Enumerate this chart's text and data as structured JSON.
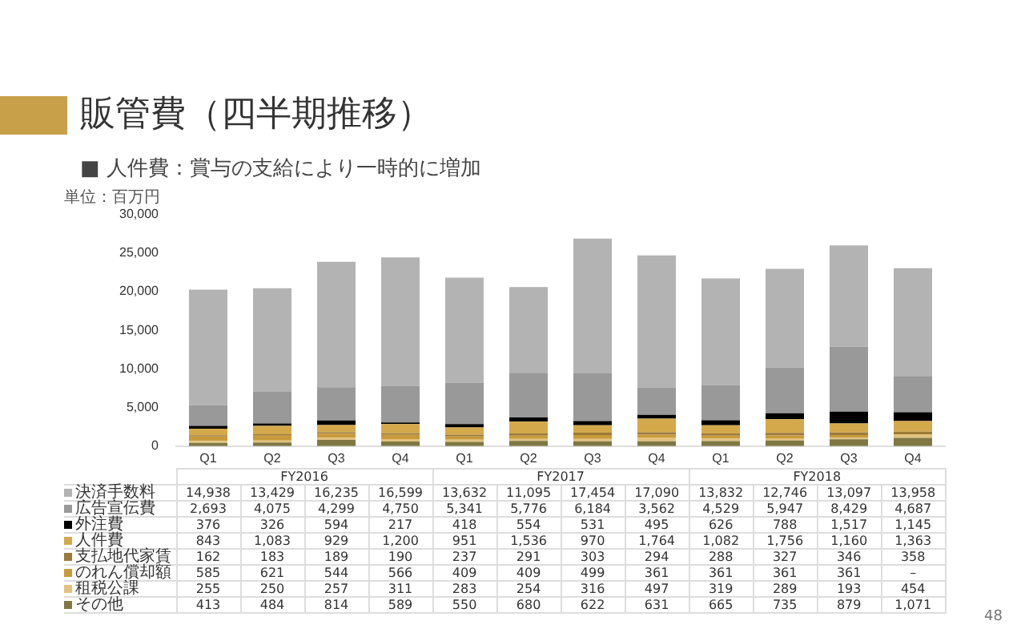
{
  "chart_data": {
    "type": "bar",
    "stacked": true,
    "title": "販管費（四半期推移）",
    "subtitle": "■ 人件費：賞与の支給により一時的に増加",
    "ylabel": "単位：百万円",
    "categories": [
      "Q1",
      "Q2",
      "Q3",
      "Q4",
      "Q1",
      "Q2",
      "Q3",
      "Q4",
      "Q1",
      "Q2",
      "Q3",
      "Q4"
    ],
    "ylim": [
      0,
      30000
    ],
    "yticks": [
      0,
      {
        "value": 5000,
        "label": "5,000"
      },
      {
        "value": 10000,
        "label": "10,000"
      },
      {
        "value": 15000,
        "label": "15,000"
      },
      {
        "value": 20000,
        "label": "20,000"
      },
      {
        "value": 25000,
        "label": "25,000"
      },
      {
        "value": 30000,
        "label": "30,000"
      }
    ],
    "grid": false,
    "legend": "bottom",
    "series": [
      {
        "name": "その他",
        "color": "#7f7843",
        "values": [
          413,
          484,
          814,
          589,
          550,
          680,
          622,
          631,
          665,
          735,
          879,
          1071
        ],
        "value_labels": [
          "413",
          "484",
          "814",
          "589",
          "550",
          "680",
          "622",
          "631",
          "665",
          "735",
          "879",
          "1,071"
        ]
      },
      {
        "name": "租税公課",
        "color": "#e2c27e",
        "values": [
          255,
          250,
          257,
          311,
          283,
          254,
          316,
          497,
          319,
          289,
          193,
          454
        ],
        "value_labels": [
          "255",
          "250",
          "257",
          "311",
          "283",
          "254",
          "316",
          "497",
          "319",
          "289",
          "193",
          "454"
        ]
      },
      {
        "name": "のれん償却額",
        "color": "#c99a3c",
        "values": [
          585,
          621,
          544,
          566,
          409,
          409,
          499,
          361,
          361,
          361,
          361,
          null
        ],
        "value_labels": [
          "585",
          "621",
          "544",
          "566",
          "409",
          "409",
          "499",
          "361",
          "361",
          "361",
          "361",
          "–"
        ]
      },
      {
        "name": "支払地代家賃",
        "color": "#9c7b3a",
        "values": [
          162,
          183,
          189,
          190,
          237,
          291,
          303,
          294,
          288,
          327,
          346,
          358
        ],
        "value_labels": [
          "162",
          "183",
          "189",
          "190",
          "237",
          "291",
          "303",
          "294",
          "288",
          "327",
          "346",
          "358"
        ]
      },
      {
        "name": "人件費",
        "color": "#d4a94c",
        "values": [
          843,
          1083,
          929,
          1200,
          951,
          1536,
          970,
          1764,
          1082,
          1756,
          1160,
          1363
        ],
        "value_labels": [
          "843",
          "1,083",
          "929",
          "1,200",
          "951",
          "1,536",
          "970",
          "1,764",
          "1,082",
          "1,756",
          "1,160",
          "1,363"
        ]
      },
      {
        "name": "外注費",
        "color": "#000000",
        "values": [
          376,
          326,
          594,
          217,
          418,
          554,
          531,
          495,
          626,
          788,
          1517,
          1145
        ],
        "value_labels": [
          "376",
          "326",
          "594",
          "217",
          "418",
          "554",
          "531",
          "495",
          "626",
          "788",
          "1,517",
          "1,145"
        ]
      },
      {
        "name": "広告宣伝費",
        "color": "#999999",
        "values": [
          2693,
          4075,
          4299,
          4750,
          5341,
          5776,
          6184,
          3562,
          4529,
          5947,
          8429,
          4687
        ],
        "value_labels": [
          "2,693",
          "4,075",
          "4,299",
          "4,750",
          "5,341",
          "5,776",
          "6,184",
          "3,562",
          "4,529",
          "5,947",
          "8,429",
          "4,687"
        ]
      },
      {
        "name": "決済手数料",
        "color": "#b3b3b3",
        "values": [
          14938,
          13429,
          16235,
          16599,
          13632,
          11095,
          17454,
          17090,
          13832,
          12746,
          13097,
          13958
        ],
        "value_labels": [
          "14,938",
          "13,429",
          "16,235",
          "16,599",
          "13,632",
          "11,095",
          "17,454",
          "17,090",
          "13,832",
          "12,746",
          "13,097",
          "13,958"
        ]
      }
    ],
    "annotations": [
      "FY2016",
      "FY2017",
      "FY2018",
      "48"
    ]
  }
}
